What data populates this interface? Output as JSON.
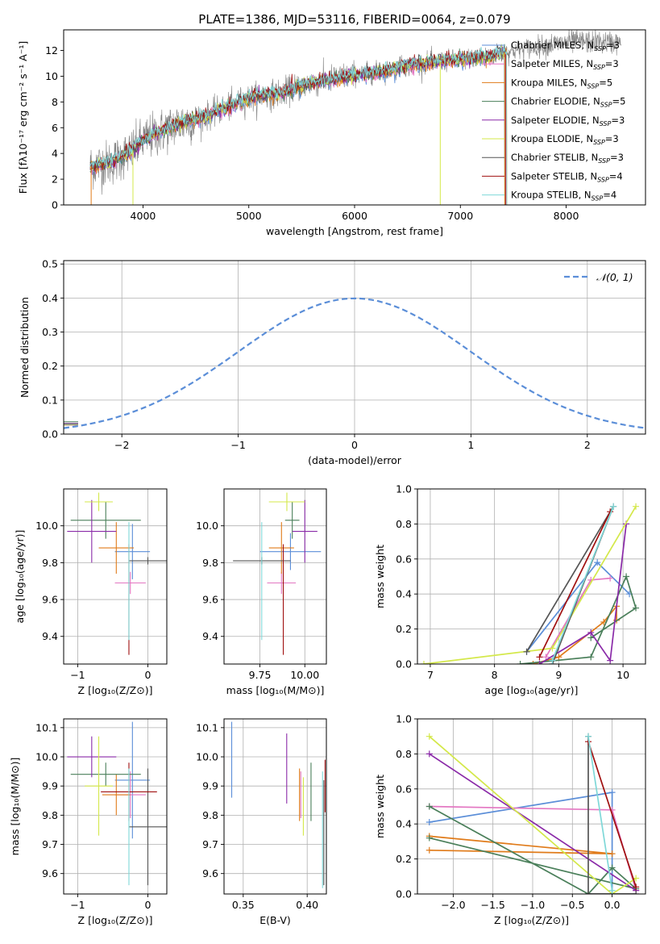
{
  "title": "PLATE=1386, MJD=53116, FIBERID=0064, z=0.079",
  "colors": {
    "chabrier_miles": "#5b8ed8",
    "salpeter_miles": "#e377c2",
    "kroupa_miles": "#e07b1a",
    "chabrier_elodie": "#4a7f5a",
    "salpeter_elodie": "#8a2aa8",
    "kroupa_elodie": "#d4e84a",
    "chabrier_stelib": "#555555",
    "salpeter_stelib": "#a01010",
    "kroupa_stelib": "#7fd8d8",
    "data": "#808080",
    "normal_curve": "#5b8ed8"
  },
  "chart_data": [
    {
      "id": "spectrum",
      "type": "line",
      "xlabel": "wavelength [Angstrom, rest frame]",
      "ylabel": "Flux [fλ10⁻¹⁷ erg cm⁻² s⁻¹ A⁻¹]",
      "xlim": [
        3250,
        8750
      ],
      "ylim": [
        0,
        13.6
      ],
      "xticks": [
        "4000",
        "5000",
        "6000",
        "7000",
        "8000"
      ],
      "xtick_values": [
        4000,
        5000,
        6000,
        7000,
        8000
      ],
      "yticks": [
        "0",
        "2",
        "4",
        "6",
        "8",
        "10",
        "12"
      ],
      "ytick_values": [
        0,
        2,
        4,
        6,
        8,
        10,
        12
      ],
      "legend_position": "top-right",
      "legend": [
        {
          "label": "Chabrier MILES, N",
          "sub": "SSP",
          "tail": "=3",
          "color": "#5b8ed8"
        },
        {
          "label": "Salpeter MILES, N",
          "sub": "SSP",
          "tail": "=3",
          "color": "#e377c2"
        },
        {
          "label": "Kroupa MILES, N",
          "sub": "SSP",
          "tail": "=5",
          "color": "#e07b1a"
        },
        {
          "label": "Chabrier ELODIE, N",
          "sub": "SSP",
          "tail": "=5",
          "color": "#4a7f5a"
        },
        {
          "label": "Salpeter ELODIE, N",
          "sub": "SSP",
          "tail": "=3",
          "color": "#8a2aa8"
        },
        {
          "label": "Kroupa ELODIE, N",
          "sub": "SSP",
          "tail": "=3",
          "color": "#d4e84a"
        },
        {
          "label": "Chabrier STELIB, N",
          "sub": "SSP",
          "tail": "=3",
          "color": "#555555"
        },
        {
          "label": "Salpeter STELIB, N",
          "sub": "SSP",
          "tail": "=4",
          "color": "#a01010"
        },
        {
          "label": "Kroupa STELIB, N",
          "sub": "SSP",
          "tail": "=4",
          "color": "#7fd8d8"
        }
      ],
      "continuum": [
        [
          3500,
          3.0
        ],
        [
          3700,
          3.3
        ],
        [
          3900,
          4.2
        ],
        [
          4000,
          5.0
        ],
        [
          4300,
          6.2
        ],
        [
          4600,
          6.9
        ],
        [
          5000,
          8.3
        ],
        [
          5300,
          8.7
        ],
        [
          5600,
          9.5
        ],
        [
          6000,
          10.1
        ],
        [
          6300,
          10.4
        ],
        [
          6600,
          11.0
        ],
        [
          7000,
          11.3
        ],
        [
          7300,
          11.6
        ],
        [
          7500,
          12.0
        ],
        [
          7800,
          12.4
        ],
        [
          8100,
          12.7
        ],
        [
          8500,
          12.6
        ]
      ]
    },
    {
      "id": "residual_histogram",
      "type": "line",
      "xlabel": "(data-model)/error",
      "ylabel": "Normed distribution",
      "xlim": [
        -2.5,
        2.5
      ],
      "ylim": [
        0,
        0.51
      ],
      "xticks": [
        "−2",
        "−1",
        "0",
        "1",
        "2"
      ],
      "xtick_values": [
        -2,
        -1,
        0,
        1,
        2
      ],
      "yticks": [
        "0.0",
        "0.1",
        "0.2",
        "0.3",
        "0.4",
        "0.5"
      ],
      "ytick_values": [
        0,
        0.1,
        0.2,
        0.3,
        0.4,
        0.5
      ],
      "legend_position": "top-right",
      "legend_label": "𝒩(0, 1)",
      "grid": true
    },
    {
      "id": "age_vs_z",
      "type": "scatter",
      "xlabel": "Z [log₁₀(Z/Z⊙)]",
      "ylabel": "age  [log₁₀(age/yr)]",
      "xlim": [
        -1.2,
        0.27
      ],
      "ylim": [
        9.25,
        10.2
      ],
      "xticks": [
        "−1",
        "0"
      ],
      "xtick_values": [
        -1,
        0
      ],
      "yticks": [
        "9.4",
        "9.6",
        "9.8",
        "10.0"
      ],
      "ytick_values": [
        9.4,
        9.6,
        9.8,
        10.0
      ],
      "grid": true,
      "points": [
        {
          "model": "chabrier_miles",
          "x": -0.22,
          "y": 9.86,
          "xerr": 0.25,
          "yerr": 0.15
        },
        {
          "model": "salpeter_miles",
          "x": -0.25,
          "y": 9.69,
          "xerr": 0.22,
          "yerr": 0.06
        },
        {
          "model": "kroupa_miles",
          "x": -0.45,
          "y": 9.88,
          "xerr": 0.25,
          "yerr": 0.14
        },
        {
          "model": "chabrier_elodie",
          "x": -0.6,
          "y": 10.03,
          "xerr": 0.5,
          "yerr": 0.1
        },
        {
          "model": "salpeter_elodie",
          "x": -0.8,
          "y": 9.97,
          "xerr": 0.35,
          "yerr": 0.17
        },
        {
          "model": "kroupa_elodie",
          "x": -0.7,
          "y": 10.13,
          "xerr": 0.2,
          "yerr": 0.05
        },
        {
          "model": "chabrier_stelib",
          "x": 0.0,
          "y": 9.81,
          "xerr": 0.27,
          "yerr": 0.02
        },
        {
          "model": "salpeter_stelib",
          "x": -0.27,
          "y": 9.6,
          "xerr": 0.0,
          "yerr": 0.3
        },
        {
          "model": "kroupa_stelib",
          "x": -0.27,
          "y": 9.7,
          "xerr": 0.0,
          "yerr": 0.32
        }
      ]
    },
    {
      "id": "age_vs_mass",
      "type": "scatter",
      "xlabel": "mass [log₁₀(M/M⊙)]",
      "ylabel": "",
      "xlim": [
        9.55,
        10.12
      ],
      "ylim": [
        9.25,
        10.2
      ],
      "xticks": [
        "9.75",
        "10.00"
      ],
      "xtick_values": [
        9.75,
        10.0
      ],
      "yticks": [
        "9.4",
        "9.6",
        "9.8",
        "10.0"
      ],
      "ytick_values": [
        9.4,
        9.6,
        9.8,
        10.0
      ],
      "grid": true,
      "points": [
        {
          "model": "chabrier_miles",
          "x": 9.92,
          "y": 9.86,
          "xerr": 0.17,
          "yerr": 0.1
        },
        {
          "model": "salpeter_miles",
          "x": 9.87,
          "y": 9.69,
          "xerr": 0.08,
          "yerr": 0.06
        },
        {
          "model": "kroupa_miles",
          "x": 9.87,
          "y": 9.88,
          "xerr": 0.07,
          "yerr": 0.14
        },
        {
          "model": "chabrier_elodie",
          "x": 9.93,
          "y": 10.03,
          "xerr": 0.04,
          "yerr": 0.1
        },
        {
          "model": "salpeter_elodie",
          "x": 10.0,
          "y": 9.97,
          "xerr": 0.07,
          "yerr": 0.17
        },
        {
          "model": "kroupa_elodie",
          "x": 9.9,
          "y": 10.13,
          "xerr": 0.1,
          "yerr": 0.05
        },
        {
          "model": "chabrier_stelib",
          "x": 9.76,
          "y": 9.81,
          "xerr": 0.16,
          "yerr": 0.02
        },
        {
          "model": "salpeter_stelib",
          "x": 9.88,
          "y": 9.6,
          "xerr": 0.0,
          "yerr": 0.3
        },
        {
          "model": "kroupa_stelib",
          "x": 9.76,
          "y": 9.7,
          "xerr": 0.0,
          "yerr": 0.32
        }
      ]
    },
    {
      "id": "weight_vs_age",
      "type": "line",
      "xlabel": "age  [log₁₀(age/yr)]",
      "ylabel": "mass weight",
      "xlim": [
        6.8,
        10.35
      ],
      "ylim": [
        0,
        1.0
      ],
      "xticks": [
        "7",
        "8",
        "9",
        "10"
      ],
      "xtick_values": [
        7,
        8,
        9,
        10
      ],
      "yticks": [
        "0.0",
        "0.2",
        "0.4",
        "0.6",
        "0.8",
        "1.0"
      ],
      "ytick_values": [
        0,
        0.2,
        0.4,
        0.6,
        0.8,
        1.0
      ],
      "grid": true,
      "series": [
        {
          "model": "chabrier_miles",
          "points": [
            [
              8.5,
              0.07
            ],
            [
              9.6,
              0.58
            ],
            [
              10.1,
              0.4
            ]
          ]
        },
        {
          "model": "salpeter_miles",
          "points": [
            [
              8.8,
              0.04
            ],
            [
              9.5,
              0.48
            ],
            [
              9.8,
              0.49
            ]
          ]
        },
        {
          "model": "kroupa_miles",
          "points": [
            [
              8.6,
              0.0
            ],
            [
              9.0,
              0.04
            ],
            [
              9.7,
              0.24
            ],
            [
              9.9,
              0.33
            ],
            [
              9.9,
              0.25
            ]
          ]
        },
        {
          "model": "chabrier_elodie",
          "points": [
            [
              8.4,
              0.0
            ],
            [
              9.5,
              0.04
            ],
            [
              10.05,
              0.5
            ],
            [
              10.2,
              0.32
            ],
            [
              9.5,
              0.15
            ]
          ]
        },
        {
          "model": "salpeter_elodie",
          "points": [
            [
              8.7,
              0.0
            ],
            [
              9.5,
              0.18
            ],
            [
              9.8,
              0.02
            ],
            [
              10.05,
              0.8
            ]
          ]
        },
        {
          "model": "kroupa_elodie",
          "points": [
            [
              6.9,
              0.0
            ],
            [
              8.9,
              0.09
            ],
            [
              10.2,
              0.9
            ]
          ]
        },
        {
          "model": "chabrier_stelib",
          "points": [
            [
              8.9,
              0.0
            ],
            [
              9.85,
              0.9
            ],
            [
              8.5,
              0.07
            ]
          ]
        },
        {
          "model": "salpeter_stelib",
          "points": [
            [
              8.7,
              0.04
            ],
            [
              9.8,
              0.87
            ]
          ]
        },
        {
          "model": "kroupa_stelib",
          "points": [
            [
              8.9,
              0.02
            ],
            [
              9.85,
              0.9
            ]
          ]
        }
      ]
    },
    {
      "id": "mass_vs_z",
      "type": "scatter",
      "xlabel": "Z [log₁₀(Z/Z⊙)]",
      "ylabel": "mass [log₁₀(M/M⊙)]",
      "xlim": [
        -1.2,
        0.27
      ],
      "ylim": [
        9.53,
        10.13
      ],
      "xticks": [
        "−1",
        "0"
      ],
      "xtick_values": [
        -1,
        0
      ],
      "yticks": [
        "9.6",
        "9.7",
        "9.8",
        "9.9",
        "10.0",
        "10.1"
      ],
      "ytick_values": [
        9.6,
        9.7,
        9.8,
        9.9,
        10.0,
        10.1
      ],
      "grid": true,
      "points": [
        {
          "model": "chabrier_miles",
          "x": -0.22,
          "y": 9.92,
          "xerr": 0.25,
          "yerr": 0.2
        },
        {
          "model": "salpeter_miles",
          "x": -0.25,
          "y": 9.87,
          "xerr": 0.22,
          "yerr": 0.08
        },
        {
          "model": "kroupa_miles",
          "x": -0.45,
          "y": 9.87,
          "xerr": 0.2,
          "yerr": 0.07
        },
        {
          "model": "chabrier_elodie",
          "x": -0.6,
          "y": 9.94,
          "xerr": 0.5,
          "yerr": 0.04
        },
        {
          "model": "salpeter_elodie",
          "x": -0.8,
          "y": 10.0,
          "xerr": 0.35,
          "yerr": 0.07
        },
        {
          "model": "kroupa_elodie",
          "x": -0.7,
          "y": 9.9,
          "xerr": 0.2,
          "yerr": 0.17
        },
        {
          "model": "chabrier_stelib",
          "x": 0.0,
          "y": 9.76,
          "xerr": 0.27,
          "yerr": 0.2
        },
        {
          "model": "salpeter_stelib",
          "x": -0.27,
          "y": 9.88,
          "xerr": 0.4,
          "yerr": 0.1
        },
        {
          "model": "kroupa_stelib",
          "x": -0.27,
          "y": 9.76,
          "xerr": 0.0,
          "yerr": 0.2
        }
      ]
    },
    {
      "id": "mass_vs_ebv",
      "type": "scatter",
      "xlabel": "E(B-V)",
      "ylabel": "",
      "xlim": [
        0.335,
        0.415
      ],
      "ylim": [
        9.53,
        10.13
      ],
      "xticks": [
        "0.35",
        "0.40"
      ],
      "xtick_values": [
        0.35,
        0.4
      ],
      "yticks": [
        "9.6",
        "9.7",
        "9.8",
        "9.9",
        "10.0",
        "10.1"
      ],
      "ytick_values": [
        9.6,
        9.7,
        9.8,
        9.9,
        10.0,
        10.1
      ],
      "grid": true,
      "points": [
        {
          "model": "chabrier_miles",
          "x": 0.341,
          "y": 9.99,
          "xerr": 0,
          "yerr": 0.13
        },
        {
          "model": "salpeter_miles",
          "x": 0.395,
          "y": 9.87,
          "xerr": 0,
          "yerr": 0.08
        },
        {
          "model": "kroupa_miles",
          "x": 0.394,
          "y": 9.87,
          "xerr": 0,
          "yerr": 0.09
        },
        {
          "model": "chabrier_elodie",
          "x": 0.403,
          "y": 9.88,
          "xerr": 0,
          "yerr": 0.1
        },
        {
          "model": "salpeter_elodie",
          "x": 0.384,
          "y": 9.96,
          "xerr": 0,
          "yerr": 0.12
        },
        {
          "model": "kroupa_elodie",
          "x": 0.397,
          "y": 9.83,
          "xerr": 0,
          "yerr": 0.1
        },
        {
          "model": "chabrier_stelib",
          "x": 0.413,
          "y": 9.74,
          "xerr": 0,
          "yerr": 0.18
        },
        {
          "model": "salpeter_stelib",
          "x": 0.414,
          "y": 9.9,
          "xerr": 0,
          "yerr": 0.09
        },
        {
          "model": "kroupa_stelib",
          "x": 0.412,
          "y": 9.75,
          "xerr": 0,
          "yerr": 0.2
        }
      ]
    },
    {
      "id": "weight_vs_z",
      "type": "line",
      "xlabel": "Z [log₁₀(Z/Z⊙)]",
      "ylabel": "mass weight",
      "xlim": [
        -2.45,
        0.42
      ],
      "ylim": [
        0,
        1.0
      ],
      "xticks": [
        "−2.0",
        "−1.5",
        "−1.0",
        "−0.5",
        "0.0"
      ],
      "xtick_values": [
        -2.0,
        -1.5,
        -1.0,
        -0.5,
        0.0
      ],
      "yticks": [
        "0.0",
        "0.2",
        "0.4",
        "0.6",
        "0.8",
        "1.0"
      ],
      "ytick_values": [
        0,
        0.2,
        0.4,
        0.6,
        0.8,
        1.0
      ],
      "grid": true,
      "series": [
        {
          "model": "chabrier_miles",
          "points": [
            [
              -2.3,
              0.41
            ],
            [
              0.0,
              0.58
            ],
            [
              0.0,
              0.0
            ]
          ]
        },
        {
          "model": "salpeter_miles",
          "points": [
            [
              -2.3,
              0.5
            ],
            [
              0.0,
              0.48
            ],
            [
              0.3,
              0.02
            ]
          ]
        },
        {
          "model": "kroupa_miles",
          "points": [
            [
              -2.3,
              0.33
            ],
            [
              0.0,
              0.23
            ],
            [
              -2.3,
              0.25
            ]
          ]
        },
        {
          "model": "chabrier_elodie",
          "points": [
            [
              -2.3,
              0.5
            ],
            [
              -0.3,
              0.0
            ],
            [
              0.0,
              0.15
            ],
            [
              0.3,
              0.03
            ],
            [
              -2.3,
              0.32
            ]
          ]
        },
        {
          "model": "salpeter_elodie",
          "points": [
            [
              -2.3,
              0.8
            ],
            [
              0.3,
              0.02
            ]
          ]
        },
        {
          "model": "kroupa_elodie",
          "points": [
            [
              -2.3,
              0.9
            ],
            [
              0.0,
              0.0
            ],
            [
              0.3,
              0.09
            ]
          ]
        },
        {
          "model": "chabrier_stelib",
          "points": [
            [
              -0.3,
              0.9
            ],
            [
              -0.3,
              0.0
            ],
            [
              0.3,
              0.0
            ]
          ]
        },
        {
          "model": "salpeter_stelib",
          "points": [
            [
              -0.3,
              0.87
            ],
            [
              0.3,
              0.04
            ]
          ]
        },
        {
          "model": "kroupa_stelib",
          "points": [
            [
              -0.3,
              0.9
            ],
            [
              0.0,
              0.02
            ]
          ]
        }
      ]
    }
  ]
}
